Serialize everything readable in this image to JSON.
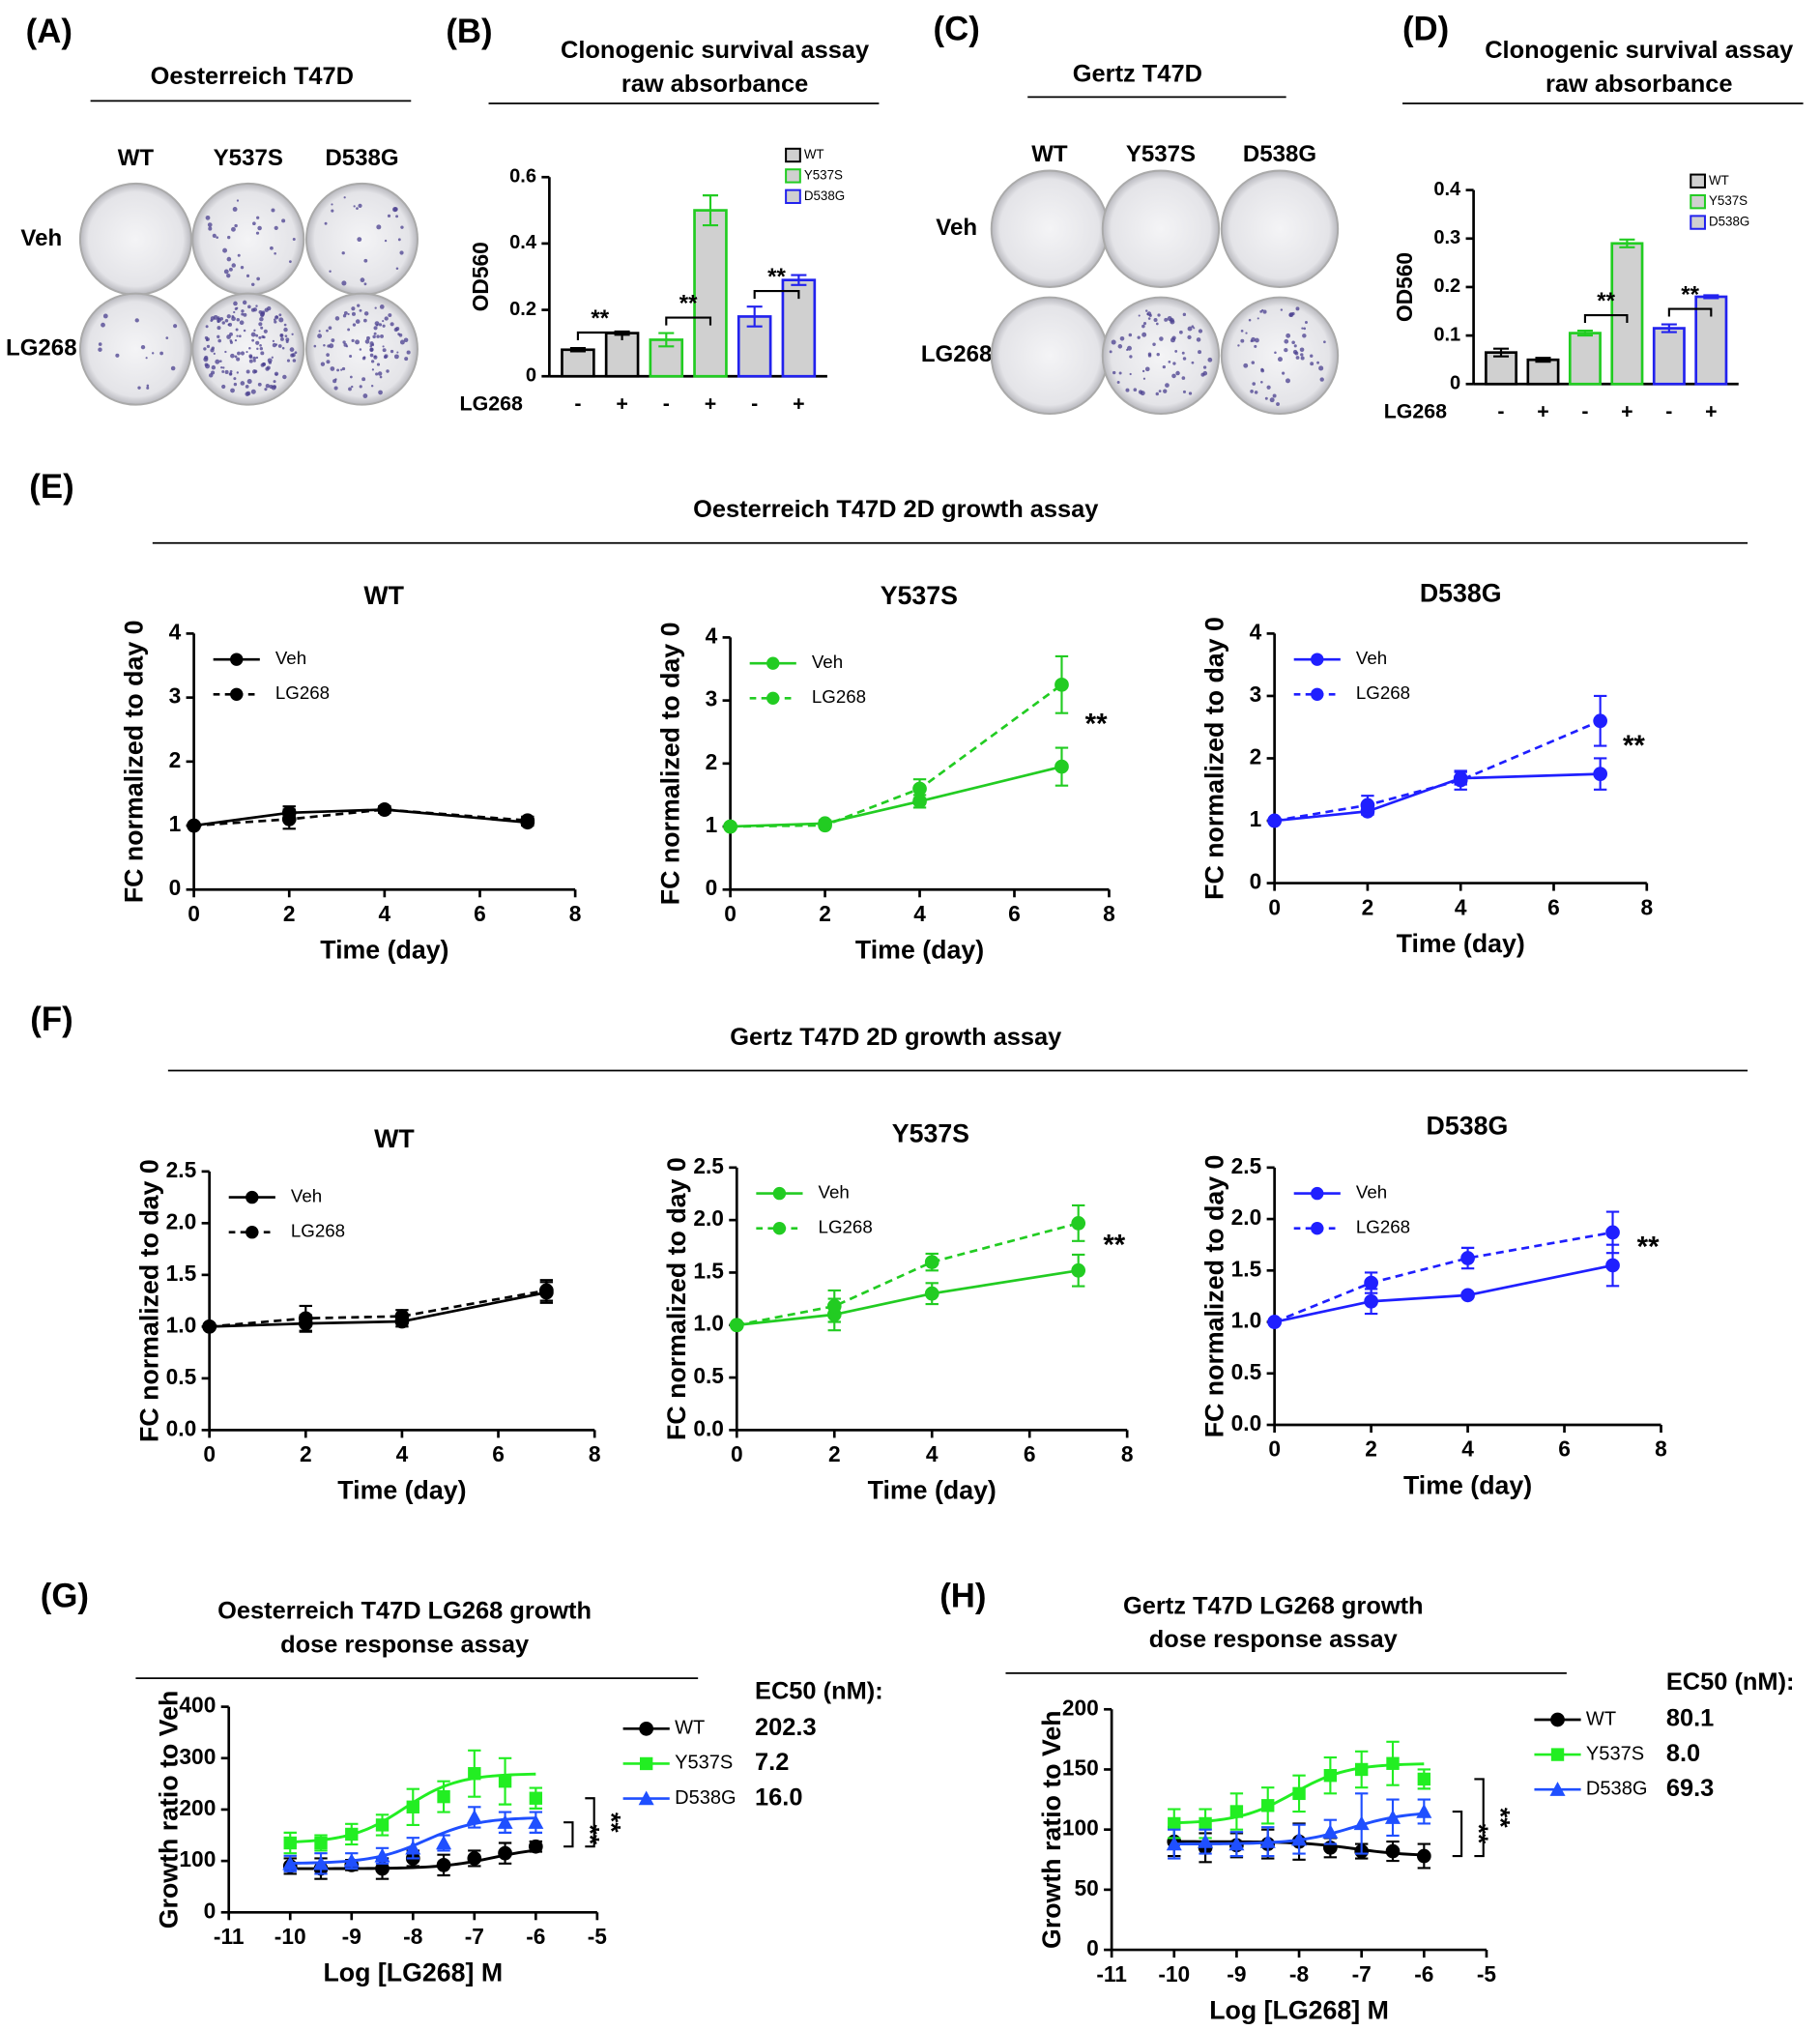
{
  "panel_a": {
    "label": "(A)",
    "title": "Oesterreich T47D",
    "columns": [
      "WT",
      "Y537S",
      "D538G"
    ],
    "rows": [
      "Veh",
      "LG268"
    ]
  },
  "panel_c": {
    "label": "(C)",
    "title": "Gertz T47D",
    "columns": [
      "WT",
      "Y537S",
      "D538G"
    ],
    "rows": [
      "Veh",
      "LG268"
    ]
  },
  "sections": [
    {
      "label": "(E)",
      "title": "Oesterreich T47D 2D growth assay"
    },
    {
      "label": "(F)",
      "title": "Gertz T47D 2D growth assay"
    }
  ],
  "chart_data": [
    {
      "type": "bar",
      "panel": "(B)",
      "title": [
        "Clonogenic survival assay",
        "raw absorbance"
      ],
      "ylabel": "OD560",
      "xlabel": "LG268",
      "categories": [
        "-",
        "+"
      ],
      "ylim": [
        0,
        0.6
      ],
      "yticks": [
        0,
        0.2,
        0.4,
        0.6
      ],
      "fill": "#d0d0d0",
      "series": [
        {
          "name": "WT",
          "color": "#000000",
          "values": [
            0.08,
            0.13
          ],
          "errors": [
            0.005,
            0.005
          ]
        },
        {
          "name": "Y537S",
          "color": "#22cc22",
          "values": [
            0.11,
            0.5
          ],
          "errors": [
            0.02,
            0.045
          ]
        },
        {
          "name": "D538G",
          "color": "#2222ee",
          "values": [
            0.18,
            0.29
          ],
          "errors": [
            0.03,
            0.015
          ]
        }
      ],
      "annotations": [
        "**",
        "**",
        "**"
      ]
    },
    {
      "type": "bar",
      "panel": "(D)",
      "title": [
        "Clonogenic survival assay",
        "raw absorbance"
      ],
      "ylabel": "OD560",
      "xlabel": "LG268",
      "categories": [
        "-",
        "+"
      ],
      "ylim": [
        0,
        0.4
      ],
      "yticks": [
        0,
        0.1,
        0.2,
        0.3,
        0.4
      ],
      "fill": "#d0d0d0",
      "series": [
        {
          "name": "WT",
          "color": "#000000",
          "values": [
            0.065,
            0.05
          ],
          "errors": [
            0.008,
            0.004
          ]
        },
        {
          "name": "Y537S",
          "color": "#22cc22",
          "values": [
            0.105,
            0.29
          ],
          "errors": [
            0.005,
            0.008
          ]
        },
        {
          "name": "D538G",
          "color": "#2222ee",
          "values": [
            0.115,
            0.18
          ],
          "errors": [
            0.008,
            0.003
          ]
        }
      ],
      "annotations": [
        null,
        "**",
        "**"
      ]
    },
    {
      "type": "line",
      "title": "WT",
      "xlabel": "Time (day)",
      "ylabel": "FC normalized to day 0",
      "x": [
        0,
        2,
        4,
        7
      ],
      "xlim": [
        0,
        8
      ],
      "xticks": [
        0,
        2,
        4,
        6,
        8
      ],
      "ylim": [
        0,
        4
      ],
      "yticks": [
        0,
        1,
        2,
        3,
        4
      ],
      "series": [
        {
          "name": "Veh",
          "color": "#000000",
          "dashed": false,
          "values": [
            1,
            1.2,
            1.25,
            1.05
          ],
          "errors": [
            0,
            0.1,
            0.05,
            0.05
          ]
        },
        {
          "name": "LG268",
          "color": "#000000",
          "dashed": true,
          "values": [
            1,
            1.1,
            1.25,
            1.08
          ],
          "errors": [
            0,
            0.15,
            0.05,
            0.06
          ]
        }
      ]
    },
    {
      "type": "line",
      "title": "Y537S",
      "xlabel": "Time (day)",
      "ylabel": "FC normalized to day 0",
      "x": [
        0,
        2,
        4,
        7
      ],
      "xlim": [
        0,
        8
      ],
      "xticks": [
        0,
        2,
        4,
        6,
        8
      ],
      "ylim": [
        0,
        4
      ],
      "yticks": [
        0,
        1,
        2,
        3,
        4
      ],
      "series": [
        {
          "name": "Veh",
          "color": "#22cc22",
          "dashed": false,
          "values": [
            1,
            1.05,
            1.4,
            1.95
          ],
          "errors": [
            0,
            0.05,
            0.1,
            0.3
          ]
        },
        {
          "name": "LG268",
          "color": "#22cc22",
          "dashed": true,
          "values": [
            1,
            1.02,
            1.6,
            3.25
          ],
          "errors": [
            0,
            0.03,
            0.15,
            0.45
          ]
        }
      ],
      "annotation": "**"
    },
    {
      "type": "line",
      "title": "D538G",
      "xlabel": "Time (day)",
      "ylabel": "FC normalized to day 0",
      "x": [
        0,
        2,
        4,
        7
      ],
      "xlim": [
        0,
        8
      ],
      "xticks": [
        0,
        2,
        4,
        6,
        8
      ],
      "ylim": [
        0,
        4
      ],
      "yticks": [
        0,
        1,
        2,
        3,
        4
      ],
      "series": [
        {
          "name": "Veh",
          "color": "#1f1fff",
          "dashed": false,
          "values": [
            1,
            1.15,
            1.68,
            1.75
          ],
          "errors": [
            0,
            0.05,
            0.1,
            0.25
          ]
        },
        {
          "name": "LG268",
          "color": "#1f1fff",
          "dashed": true,
          "values": [
            1,
            1.25,
            1.65,
            2.6
          ],
          "errors": [
            0,
            0.15,
            0.15,
            0.4
          ]
        }
      ],
      "annotation": "**"
    },
    {
      "type": "line",
      "title": "WT",
      "xlabel": "Time (day)",
      "ylabel": "FC normalized to day 0",
      "x": [
        0,
        2,
        4,
        7
      ],
      "xlim": [
        0,
        8
      ],
      "xticks": [
        0,
        2,
        4,
        6,
        8
      ],
      "ylim": [
        0,
        2.5
      ],
      "yticks": [
        {
          "value": 0,
          "label": "0.0"
        },
        0.5,
        {
          "value": 1,
          "label": "1.0"
        },
        1.5,
        {
          "value": 2,
          "label": "2.0"
        },
        2.5
      ],
      "series": [
        {
          "name": "Veh",
          "color": "#000000",
          "dashed": false,
          "values": [
            1,
            1.03,
            1.05,
            1.33
          ],
          "errors": [
            0,
            0.08,
            0.05,
            0.1
          ]
        },
        {
          "name": "LG268",
          "color": "#000000",
          "dashed": true,
          "values": [
            1,
            1.08,
            1.1,
            1.35
          ],
          "errors": [
            0,
            0.12,
            0.06,
            0.1
          ]
        }
      ]
    },
    {
      "type": "line",
      "title": "Y537S",
      "xlabel": "Time (day)",
      "ylabel": "FC normalized to day 0",
      "x": [
        0,
        2,
        4,
        7
      ],
      "xlim": [
        0,
        8
      ],
      "xticks": [
        0,
        2,
        4,
        6,
        8
      ],
      "ylim": [
        0,
        2.5
      ],
      "yticks": [
        {
          "value": 0,
          "label": "0.0"
        },
        0.5,
        {
          "value": 1,
          "label": "1.0"
        },
        1.5,
        {
          "value": 2,
          "label": "2.0"
        },
        2.5
      ],
      "series": [
        {
          "name": "Veh",
          "color": "#22cc22",
          "dashed": false,
          "values": [
            1,
            1.1,
            1.3,
            1.52
          ],
          "errors": [
            0,
            0.15,
            0.1,
            0.15
          ]
        },
        {
          "name": "LG268",
          "color": "#22cc22",
          "dashed": true,
          "values": [
            1,
            1.18,
            1.6,
            1.97
          ],
          "errors": [
            0,
            0.15,
            0.08,
            0.17
          ]
        }
      ],
      "annotation": "**"
    },
    {
      "type": "line",
      "title": "D538G",
      "xlabel": "Time (day)",
      "ylabel": "FC normalized to day 0",
      "x": [
        0,
        2,
        4,
        7
      ],
      "xlim": [
        0,
        8
      ],
      "xticks": [
        0,
        2,
        4,
        6,
        8
      ],
      "ylim": [
        0,
        2.5
      ],
      "yticks": [
        {
          "value": 0,
          "label": "0.0"
        },
        0.5,
        {
          "value": 1,
          "label": "1.0"
        },
        1.5,
        {
          "value": 2,
          "label": "2.0"
        },
        2.5
      ],
      "series": [
        {
          "name": "Veh",
          "color": "#1f1fff",
          "dashed": false,
          "values": [
            1,
            1.2,
            1.26,
            1.55
          ],
          "errors": [
            0,
            0.12,
            0.02,
            0.2
          ]
        },
        {
          "name": "LG268",
          "color": "#1f1fff",
          "dashed": true,
          "values": [
            1,
            1.38,
            1.62,
            1.87
          ],
          "errors": [
            0,
            0.1,
            0.1,
            0.2
          ]
        }
      ],
      "annotation": "**"
    },
    {
      "type": "scatter",
      "panel": "(G)",
      "title": [
        "Oesterreich T47D LG268 growth",
        "dose response assay"
      ],
      "xlabel": "Log [LG268] M",
      "ylabel": "Growth ratio to Veh",
      "x": [
        -10,
        -9.5,
        -9,
        -8.5,
        -8,
        -7.5,
        -7,
        -6.5,
        -6
      ],
      "xlim": [
        -11,
        -5
      ],
      "xticks": [
        -11,
        -10,
        -9,
        -8,
        -7,
        -6,
        -5
      ],
      "ylim": [
        0,
        400
      ],
      "yticks": [
        0,
        100,
        200,
        300,
        400
      ],
      "ec50_title": "EC50 (nM):",
      "series": [
        {
          "name": "WT",
          "color": "#000000",
          "marker": "circle",
          "values": [
            90,
            85,
            92,
            85,
            105,
            92,
            105,
            115,
            128
          ],
          "errors": [
            15,
            20,
            10,
            20,
            15,
            20,
            15,
            20,
            10
          ],
          "ec50": 202.3
        },
        {
          "name": "Y537S",
          "color": "#22ee22",
          "marker": "square",
          "values": [
            135,
            135,
            152,
            170,
            205,
            225,
            270,
            255,
            222
          ],
          "errors": [
            20,
            15,
            20,
            20,
            35,
            30,
            45,
            45,
            20
          ],
          "ec50": 7.2
        },
        {
          "name": "D538G",
          "color": "#1f4fff",
          "marker": "triangle",
          "values": [
            95,
            95,
            100,
            110,
            125,
            135,
            185,
            175,
            175
          ],
          "errors": [
            15,
            20,
            15,
            15,
            20,
            15,
            20,
            20,
            20
          ],
          "ec50": 16,
          "ec50_label": "16.0"
        }
      ],
      "annotations": [
        "**",
        "**"
      ]
    },
    {
      "type": "scatter",
      "panel": "(H)",
      "title": [
        "Gertz T47D LG268 growth",
        "dose response assay"
      ],
      "xlabel": "Log [LG268] M",
      "ylabel": "Growth ratio to Veh",
      "x": [
        -10,
        -9.5,
        -9,
        -8.5,
        -8,
        -7.5,
        -7,
        -6.5,
        -6
      ],
      "xlim": [
        -11,
        -5
      ],
      "xticks": [
        -11,
        -10,
        -9,
        -8,
        -7,
        -6,
        -5
      ],
      "ylim": [
        0,
        200
      ],
      "yticks": [
        0,
        50,
        100,
        150,
        200
      ],
      "ec50_title": "EC50 (nM):",
      "series": [
        {
          "name": "WT",
          "color": "#000000",
          "marker": "circle",
          "values": [
            90,
            85,
            87,
            88,
            90,
            85,
            82,
            82,
            78
          ],
          "errors": [
            12,
            12,
            10,
            12,
            15,
            8,
            6,
            8,
            10
          ],
          "ec50": 80.1
        },
        {
          "name": "Y537S",
          "color": "#22ee22",
          "marker": "square",
          "values": [
            105,
            105,
            115,
            120,
            130,
            145,
            150,
            155,
            142
          ],
          "errors": [
            12,
            12,
            15,
            15,
            15,
            15,
            15,
            18,
            8
          ],
          "ec50": 8,
          "ec50_label": "8.0"
        },
        {
          "name": "D538G",
          "color": "#1f4fff",
          "marker": "triangle",
          "values": [
            88,
            90,
            88,
            90,
            92,
            98,
            105,
            110,
            115
          ],
          "errors": [
            12,
            10,
            10,
            12,
            12,
            10,
            25,
            15,
            10
          ],
          "ec50": 69.3
        }
      ],
      "annotations": [
        "**",
        "**"
      ]
    }
  ]
}
